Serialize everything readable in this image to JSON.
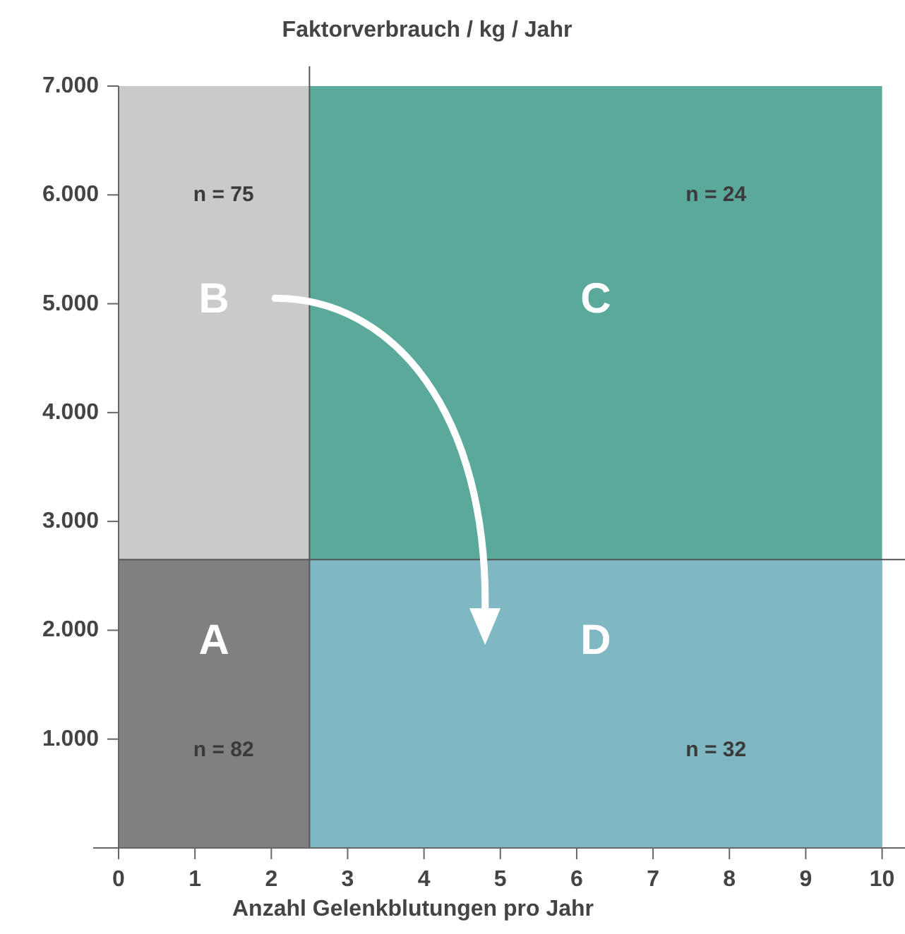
{
  "chart_data": {
    "type": "area",
    "series": [
      {
        "name": "B",
        "color": "#cacaca",
        "x": [
          0,
          2.5
        ],
        "values": [
          7000,
          7000
        ]
      },
      {
        "name": "C",
        "color": "#5aa99b",
        "x": [
          2.5,
          10
        ],
        "values": [
          7000,
          7000
        ]
      },
      {
        "name": "A",
        "color": "#808080",
        "x": [
          0,
          2.5
        ],
        "values": [
          2650,
          2650
        ]
      },
      {
        "name": "D",
        "color": "#7fb8c2",
        "x": [
          2.5,
          10
        ],
        "values": [
          2650,
          2650
        ]
      }
    ],
    "title": "Faktorverbrauch / kg / Jahr",
    "xlabel": "Anzahl Gelenkblutungen pro Jahr",
    "xlim": [
      0,
      10.3
    ],
    "xticks": [
      0,
      1,
      2,
      3,
      4,
      5,
      6,
      7,
      8,
      9,
      10
    ],
    "ylim": [
      0,
      7000
    ],
    "yticks": [
      {
        "value": 0,
        "label": null
      },
      {
        "value": 1000,
        "label": "1.000"
      },
      {
        "value": 2000,
        "label": "2.000"
      },
      {
        "value": 3000,
        "label": "3.000"
      },
      {
        "value": 4000,
        "label": "4.000"
      },
      {
        "value": 5000,
        "label": "5.000"
      },
      {
        "value": 6000,
        "label": "6.000"
      },
      {
        "value": 7000,
        "label": "7.000"
      }
    ],
    "ref_lines": [
      {
        "axis": "x",
        "value": 2.5,
        "color": "#555555"
      },
      {
        "axis": "y",
        "value": 2650,
        "color": "#555555"
      }
    ],
    "annotations": [
      "n = 75",
      "n = 24",
      "n = 82",
      "n = 32"
    ]
  }
}
